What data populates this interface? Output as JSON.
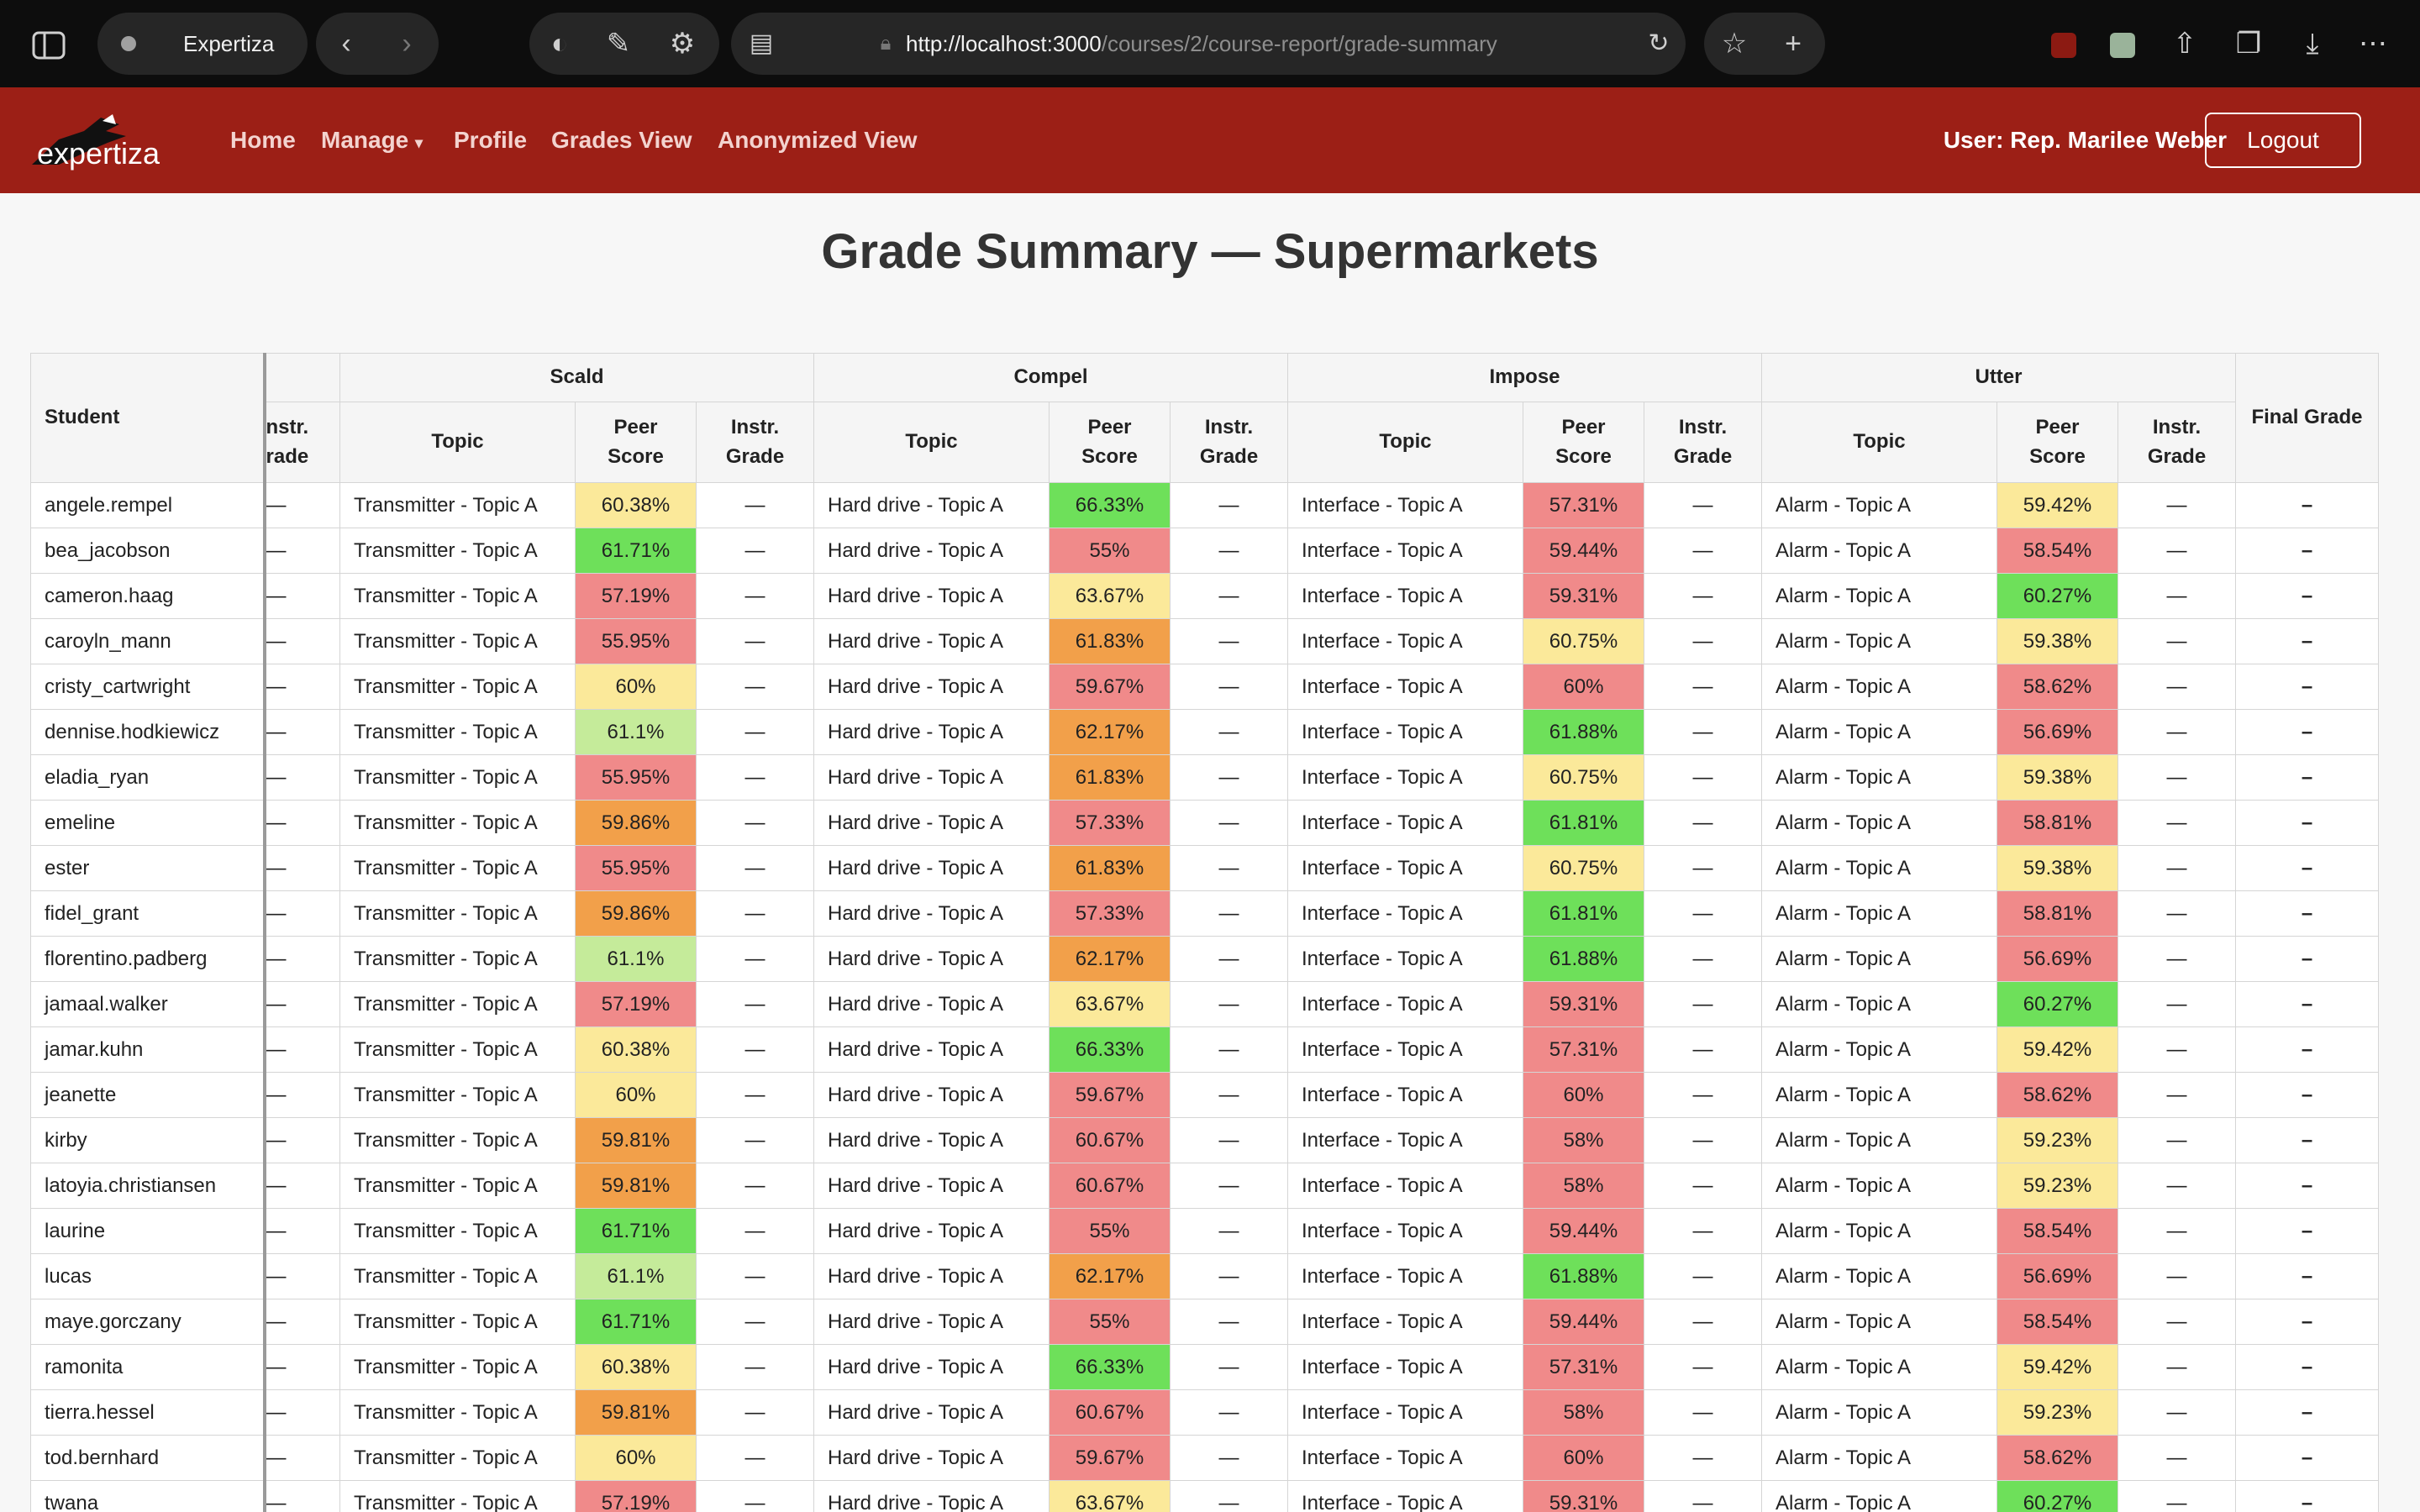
{
  "browser": {
    "tab_title": "Expertiza",
    "url_host": "http://localhost:3000",
    "url_path": "/courses/2/course-report/grade-summary"
  },
  "navbar": {
    "logo_text": "expertiza",
    "links": [
      "Home",
      "Manage",
      "Profile",
      "Grades View",
      "Anonymized View"
    ],
    "user_label": "User: Rep. Marilee Weber",
    "logout_label": "Logout"
  },
  "page": {
    "title": "Grade Summary — Supermarkets"
  },
  "table": {
    "student_header": "Student",
    "cut_column_header": [
      "nstr.",
      "rade"
    ],
    "assignments": [
      "Scald",
      "Compel",
      "Impose",
      "Utter"
    ],
    "sub_headers": {
      "topic": "Topic",
      "peer": [
        "Peer",
        "Score"
      ],
      "instr": [
        "Instr.",
        "Grade"
      ]
    },
    "final_header": "Final Grade",
    "empty": "—",
    "final_empty": "–",
    "topics": [
      "Transmitter - Topic A",
      "Hard drive - Topic A",
      "Interface - Topic A",
      "Alarm - Topic A"
    ],
    "score_colors": {
      "green": "#6ee05a",
      "light_green": "#c5eb9a",
      "yellow": "#fbe99a",
      "orange": "#f2a04a",
      "red": "#f08a8a"
    },
    "rows": [
      {
        "name": "angele.rempel",
        "scores": [
          [
            "60.38%",
            "yellow"
          ],
          [
            "66.33%",
            "green"
          ],
          [
            "57.31%",
            "red"
          ],
          [
            "59.42%",
            "yellow"
          ]
        ]
      },
      {
        "name": "bea_jacobson",
        "scores": [
          [
            "61.71%",
            "green"
          ],
          [
            "55%",
            "red"
          ],
          [
            "59.44%",
            "red"
          ],
          [
            "58.54%",
            "red"
          ]
        ]
      },
      {
        "name": "cameron.haag",
        "scores": [
          [
            "57.19%",
            "red"
          ],
          [
            "63.67%",
            "yellow"
          ],
          [
            "59.31%",
            "red"
          ],
          [
            "60.27%",
            "green"
          ]
        ]
      },
      {
        "name": "caroyln_mann",
        "scores": [
          [
            "55.95%",
            "red"
          ],
          [
            "61.83%",
            "orange"
          ],
          [
            "60.75%",
            "yellow"
          ],
          [
            "59.38%",
            "yellow"
          ]
        ]
      },
      {
        "name": "cristy_cartwright",
        "scores": [
          [
            "60%",
            "yellow"
          ],
          [
            "59.67%",
            "red"
          ],
          [
            "60%",
            "red"
          ],
          [
            "58.62%",
            "red"
          ]
        ]
      },
      {
        "name": "dennise.hodkiewicz",
        "scores": [
          [
            "61.1%",
            "light_green"
          ],
          [
            "62.17%",
            "orange"
          ],
          [
            "61.88%",
            "green"
          ],
          [
            "56.69%",
            "red"
          ]
        ]
      },
      {
        "name": "eladia_ryan",
        "scores": [
          [
            "55.95%",
            "red"
          ],
          [
            "61.83%",
            "orange"
          ],
          [
            "60.75%",
            "yellow"
          ],
          [
            "59.38%",
            "yellow"
          ]
        ]
      },
      {
        "name": "emeline",
        "scores": [
          [
            "59.86%",
            "orange"
          ],
          [
            "57.33%",
            "red"
          ],
          [
            "61.81%",
            "green"
          ],
          [
            "58.81%",
            "red"
          ]
        ]
      },
      {
        "name": "ester",
        "scores": [
          [
            "55.95%",
            "red"
          ],
          [
            "61.83%",
            "orange"
          ],
          [
            "60.75%",
            "yellow"
          ],
          [
            "59.38%",
            "yellow"
          ]
        ]
      },
      {
        "name": "fidel_grant",
        "scores": [
          [
            "59.86%",
            "orange"
          ],
          [
            "57.33%",
            "red"
          ],
          [
            "61.81%",
            "green"
          ],
          [
            "58.81%",
            "red"
          ]
        ]
      },
      {
        "name": "florentino.padberg",
        "scores": [
          [
            "61.1%",
            "light_green"
          ],
          [
            "62.17%",
            "orange"
          ],
          [
            "61.88%",
            "green"
          ],
          [
            "56.69%",
            "red"
          ]
        ]
      },
      {
        "name": "jamaal.walker",
        "scores": [
          [
            "57.19%",
            "red"
          ],
          [
            "63.67%",
            "yellow"
          ],
          [
            "59.31%",
            "red"
          ],
          [
            "60.27%",
            "green"
          ]
        ]
      },
      {
        "name": "jamar.kuhn",
        "scores": [
          [
            "60.38%",
            "yellow"
          ],
          [
            "66.33%",
            "green"
          ],
          [
            "57.31%",
            "red"
          ],
          [
            "59.42%",
            "yellow"
          ]
        ]
      },
      {
        "name": "jeanette",
        "scores": [
          [
            "60%",
            "yellow"
          ],
          [
            "59.67%",
            "red"
          ],
          [
            "60%",
            "red"
          ],
          [
            "58.62%",
            "red"
          ]
        ]
      },
      {
        "name": "kirby",
        "scores": [
          [
            "59.81%",
            "orange"
          ],
          [
            "60.67%",
            "red"
          ],
          [
            "58%",
            "red"
          ],
          [
            "59.23%",
            "yellow"
          ]
        ]
      },
      {
        "name": "latoyia.christiansen",
        "scores": [
          [
            "59.81%",
            "orange"
          ],
          [
            "60.67%",
            "red"
          ],
          [
            "58%",
            "red"
          ],
          [
            "59.23%",
            "yellow"
          ]
        ]
      },
      {
        "name": "laurine",
        "scores": [
          [
            "61.71%",
            "green"
          ],
          [
            "55%",
            "red"
          ],
          [
            "59.44%",
            "red"
          ],
          [
            "58.54%",
            "red"
          ]
        ]
      },
      {
        "name": "lucas",
        "scores": [
          [
            "61.1%",
            "light_green"
          ],
          [
            "62.17%",
            "orange"
          ],
          [
            "61.88%",
            "green"
          ],
          [
            "56.69%",
            "red"
          ]
        ]
      },
      {
        "name": "maye.gorczany",
        "scores": [
          [
            "61.71%",
            "green"
          ],
          [
            "55%",
            "red"
          ],
          [
            "59.44%",
            "red"
          ],
          [
            "58.54%",
            "red"
          ]
        ]
      },
      {
        "name": "ramonita",
        "scores": [
          [
            "60.38%",
            "yellow"
          ],
          [
            "66.33%",
            "green"
          ],
          [
            "57.31%",
            "red"
          ],
          [
            "59.42%",
            "yellow"
          ]
        ]
      },
      {
        "name": "tierra.hessel",
        "scores": [
          [
            "59.81%",
            "orange"
          ],
          [
            "60.67%",
            "red"
          ],
          [
            "58%",
            "red"
          ],
          [
            "59.23%",
            "yellow"
          ]
        ]
      },
      {
        "name": "tod.bernhard",
        "scores": [
          [
            "60%",
            "yellow"
          ],
          [
            "59.67%",
            "red"
          ],
          [
            "60%",
            "red"
          ],
          [
            "58.62%",
            "red"
          ]
        ]
      },
      {
        "name": "twana",
        "scores": [
          [
            "57.19%",
            "red"
          ],
          [
            "63.67%",
            "yellow"
          ],
          [
            "59.31%",
            "red"
          ],
          [
            "60.27%",
            "green"
          ]
        ]
      }
    ]
  }
}
